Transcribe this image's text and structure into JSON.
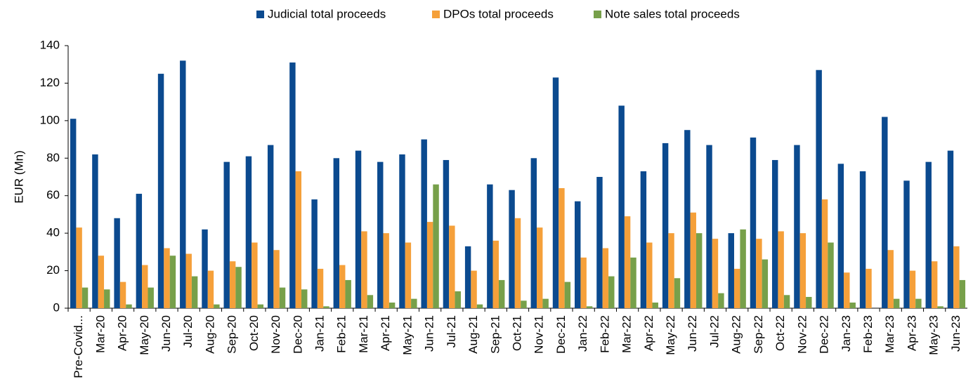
{
  "chart_data": {
    "type": "bar",
    "y_label": "EUR (Mn)",
    "categories": [
      "Pre-Covid...",
      "Mar-20",
      "Apr-20",
      "May-20",
      "Jun-20",
      "Jul-20",
      "Aug-20",
      "Sep-20",
      "Oct-20",
      "Nov-20",
      "Dec-20",
      "Jan-21",
      "Feb-21",
      "Mar-21",
      "Apr-21",
      "May-21",
      "Jun-21",
      "Jul-21",
      "Aug-21",
      "Sep-21",
      "Oct-21",
      "Nov-21",
      "Dec-21",
      "Jan-22",
      "Feb-22",
      "Mar-22",
      "Apr-22",
      "May-22",
      "Jun-22",
      "Jul-22",
      "Aug-22",
      "Sep-22",
      "Oct-22",
      "Nov-22",
      "Dec-22",
      "Jan-23",
      "Feb-23",
      "Mar-23",
      "Apr-23",
      "May-23",
      "Jun-23"
    ],
    "series": [
      {
        "name": "Judicial total proceeds",
        "color": "#0b4a8f",
        "values": [
          101,
          82,
          48,
          61,
          125,
          132,
          42,
          78,
          81,
          87,
          131,
          58,
          80,
          84,
          78,
          82,
          90,
          79,
          33,
          66,
          63,
          80,
          123,
          57,
          70,
          108,
          73,
          88,
          95,
          87,
          40,
          91,
          79,
          87,
          127,
          77,
          73,
          102,
          68,
          78,
          84
        ]
      },
      {
        "name": "DPOs total proceeds",
        "color": "#f5a03a",
        "values": [
          43,
          28,
          14,
          23,
          32,
          29,
          20,
          25,
          35,
          31,
          73,
          21,
          23,
          41,
          40,
          35,
          46,
          44,
          20,
          36,
          48,
          43,
          64,
          27,
          32,
          49,
          35,
          40,
          51,
          37,
          21,
          37,
          41,
          40,
          58,
          19,
          21,
          31,
          20,
          25,
          33
        ]
      },
      {
        "name": "Note sales total proceeds",
        "color": "#77a04a",
        "values": [
          11,
          10,
          2,
          11,
          28,
          17,
          2,
          22,
          2,
          11,
          10,
          1,
          15,
          7,
          3,
          5,
          66,
          9,
          2,
          15,
          4,
          5,
          14,
          1,
          17,
          27,
          3,
          16,
          40,
          8,
          42,
          26,
          7,
          6,
          35,
          3,
          0,
          5,
          5,
          1,
          15
        ]
      }
    ],
    "ylim": [
      0,
      140
    ],
    "yticks": [
      0,
      20,
      40,
      60,
      80,
      100,
      120,
      140
    ],
    "legend": "top"
  }
}
